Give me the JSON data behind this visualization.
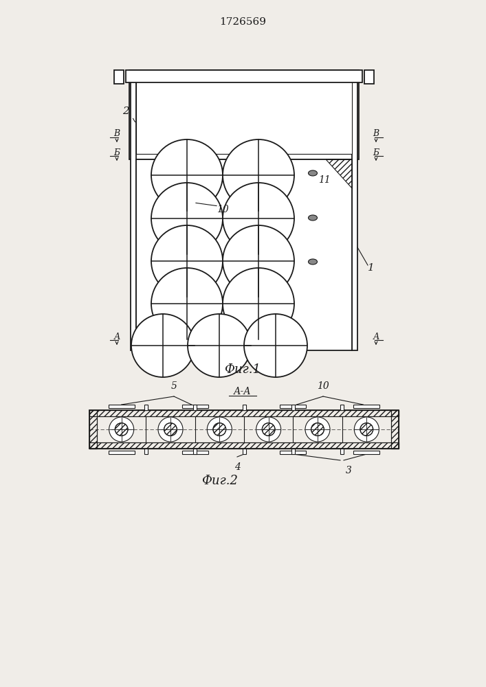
{
  "title": "1726569",
  "fig1_label": "Фиг.1",
  "fig2_label": "Фиг.2",
  "section_label": "А-А",
  "bg_color": "#f0ede8",
  "line_color": "#1a1a1a",
  "white": "#ffffff"
}
